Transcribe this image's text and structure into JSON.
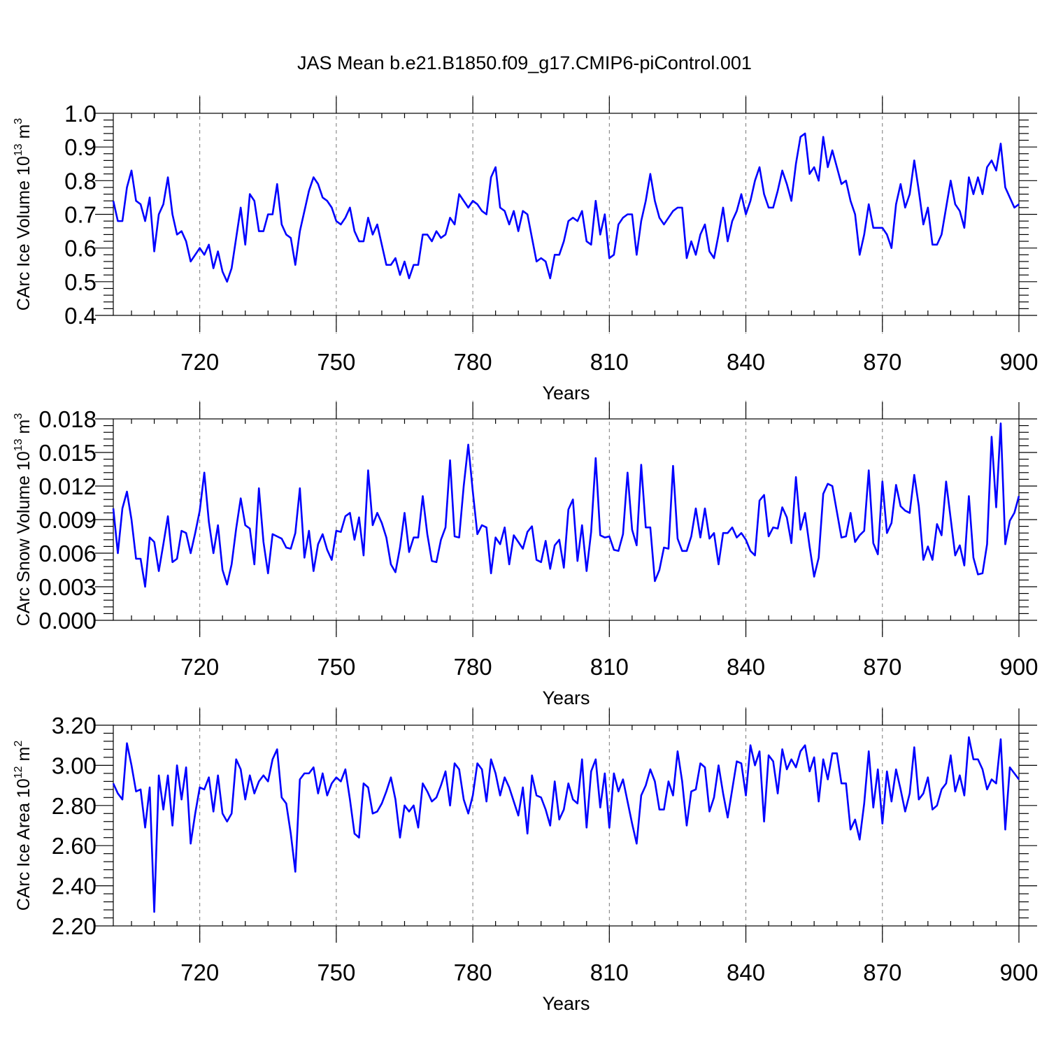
{
  "chart_data": {
    "type": "line",
    "title": "JAS Mean b.e21.B1850.f09_g17.CMIP6-piControl.001",
    "x_start": 701,
    "x_step": 1,
    "xlim": [
      701,
      900
    ],
    "xticks": [
      720,
      750,
      780,
      810,
      840,
      870,
      900
    ],
    "panels": [
      {
        "name": "ice-volume",
        "ylabel": "CArc Ice Volume 10",
        "ylabel_sup": "13",
        "ylabel_unit": " m",
        "ylabel_unit_sup": "3",
        "xlabel": "Years",
        "ylim": [
          0.4,
          1.0
        ],
        "yticks": [
          0.4,
          0.5,
          0.6,
          0.7,
          0.8,
          0.9,
          1.0
        ],
        "ytick_labels": [
          "0.4",
          "0.5",
          "0.6",
          "0.7",
          "0.8",
          "0.9",
          "1.0"
        ],
        "series": [
          {
            "name": "CArc Ice Volume",
            "color": "#0000ff",
            "values": [
              0.74,
              0.68,
              0.68,
              0.78,
              0.83,
              0.74,
              0.73,
              0.68,
              0.75,
              0.59,
              0.7,
              0.73,
              0.81,
              0.7,
              0.64,
              0.65,
              0.62,
              0.56,
              0.58,
              0.6,
              0.58,
              0.61,
              0.54,
              0.59,
              0.53,
              0.5,
              0.54,
              0.63,
              0.72,
              0.61,
              0.76,
              0.74,
              0.65,
              0.65,
              0.7,
              0.7,
              0.79,
              0.67,
              0.64,
              0.63,
              0.55,
              0.65,
              0.71,
              0.77,
              0.81,
              0.79,
              0.75,
              0.74,
              0.72,
              0.68,
              0.67,
              0.69,
              0.72,
              0.65,
              0.62,
              0.62,
              0.69,
              0.64,
              0.67,
              0.61,
              0.55,
              0.55,
              0.57,
              0.52,
              0.56,
              0.51,
              0.55,
              0.55,
              0.64,
              0.64,
              0.62,
              0.65,
              0.63,
              0.64,
              0.69,
              0.67,
              0.76,
              0.74,
              0.72,
              0.74,
              0.73,
              0.71,
              0.7,
              0.81,
              0.84,
              0.72,
              0.71,
              0.67,
              0.71,
              0.65,
              0.71,
              0.7,
              0.63,
              0.56,
              0.57,
              0.56,
              0.51,
              0.58,
              0.58,
              0.62,
              0.68,
              0.69,
              0.68,
              0.71,
              0.62,
              0.61,
              0.74,
              0.64,
              0.7,
              0.57,
              0.58,
              0.67,
              0.69,
              0.7,
              0.7,
              0.58,
              0.68,
              0.74,
              0.82,
              0.74,
              0.69,
              0.67,
              0.69,
              0.71,
              0.72,
              0.72,
              0.57,
              0.62,
              0.58,
              0.64,
              0.67,
              0.59,
              0.57,
              0.64,
              0.72,
              0.62,
              0.68,
              0.71,
              0.76,
              0.7,
              0.74,
              0.8,
              0.84,
              0.76,
              0.72,
              0.72,
              0.77,
              0.83,
              0.79,
              0.74,
              0.85,
              0.93,
              0.94,
              0.82,
              0.84,
              0.8,
              0.93,
              0.84,
              0.89,
              0.84,
              0.79,
              0.8,
              0.74,
              0.7,
              0.58,
              0.64,
              0.73,
              0.66,
              0.66,
              0.66,
              0.64,
              0.6,
              0.73,
              0.79,
              0.72,
              0.76,
              0.86,
              0.77,
              0.67,
              0.72,
              0.61,
              0.61,
              0.64,
              0.72,
              0.8,
              0.73,
              0.71,
              0.66,
              0.81,
              0.76,
              0.81,
              0.76,
              0.84,
              0.86,
              0.83,
              0.91,
              0.78,
              0.75,
              0.72,
              0.73
            ]
          }
        ]
      },
      {
        "name": "snow-volume",
        "ylabel": "CArc Snow Volume 10",
        "ylabel_sup": "13",
        "ylabel_unit": " m",
        "ylabel_unit_sup": "3",
        "xlabel": "Years",
        "ylim": [
          0.0,
          0.018
        ],
        "yticks": [
          0.0,
          0.003,
          0.006,
          0.009,
          0.012,
          0.015,
          0.018
        ],
        "ytick_labels": [
          "0.000",
          "0.003",
          "0.006",
          "0.009",
          "0.012",
          "0.015",
          "0.018"
        ],
        "series": [
          {
            "name": "CArc Snow Volume",
            "color": "#0000ff",
            "values": [
              0.01,
              0.006,
              0.01,
              0.0115,
              0.009,
              0.0055,
              0.0055,
              0.003,
              0.0074,
              0.007,
              0.0044,
              0.0068,
              0.0093,
              0.0052,
              0.0055,
              0.008,
              0.0078,
              0.006,
              0.0078,
              0.0098,
              0.0132,
              0.0088,
              0.006,
              0.0085,
              0.0045,
              0.0032,
              0.005,
              0.0082,
              0.0109,
              0.0085,
              0.0082,
              0.005,
              0.0118,
              0.007,
              0.0042,
              0.0077,
              0.0075,
              0.0073,
              0.0065,
              0.0064,
              0.0078,
              0.0118,
              0.0056,
              0.008,
              0.0044,
              0.0068,
              0.0077,
              0.0063,
              0.0054,
              0.008,
              0.0079,
              0.0093,
              0.0096,
              0.0072,
              0.0092,
              0.0058,
              0.0134,
              0.0085,
              0.0096,
              0.0087,
              0.0074,
              0.005,
              0.0043,
              0.0065,
              0.0096,
              0.0061,
              0.0074,
              0.0074,
              0.0111,
              0.0077,
              0.0053,
              0.0052,
              0.0072,
              0.0083,
              0.0143,
              0.0075,
              0.0074,
              0.012,
              0.0157,
              0.0115,
              0.0077,
              0.0085,
              0.0083,
              0.0042,
              0.0074,
              0.0068,
              0.0083,
              0.005,
              0.0076,
              0.007,
              0.0064,
              0.0079,
              0.0084,
              0.0054,
              0.0052,
              0.0071,
              0.0046,
              0.0067,
              0.0072,
              0.0047,
              0.0099,
              0.0108,
              0.0053,
              0.0085,
              0.0044,
              0.0079,
              0.0145,
              0.0076,
              0.0074,
              0.0075,
              0.0063,
              0.0062,
              0.0077,
              0.0132,
              0.0081,
              0.0067,
              0.0139,
              0.0083,
              0.0083,
              0.0035,
              0.0045,
              0.0065,
              0.0064,
              0.0138,
              0.0073,
              0.0062,
              0.0062,
              0.0075,
              0.01,
              0.0074,
              0.01,
              0.0073,
              0.0078,
              0.005,
              0.0078,
              0.0078,
              0.0083,
              0.0074,
              0.0078,
              0.0072,
              0.0062,
              0.0058,
              0.0107,
              0.0112,
              0.0075,
              0.0083,
              0.0082,
              0.0101,
              0.0092,
              0.0069,
              0.0128,
              0.0081,
              0.0096,
              0.0066,
              0.0039,
              0.0056,
              0.0113,
              0.0122,
              0.012,
              0.0097,
              0.0074,
              0.0075,
              0.0096,
              0.007,
              0.0076,
              0.008,
              0.0134,
              0.0069,
              0.0059,
              0.0124,
              0.0078,
              0.0087,
              0.0121,
              0.0102,
              0.0098,
              0.0096,
              0.013,
              0.0102,
              0.0054,
              0.0066,
              0.0054,
              0.0086,
              0.0076,
              0.0124,
              0.0091,
              0.0058,
              0.0067,
              0.0049,
              0.0111,
              0.0056,
              0.0041,
              0.0042,
              0.0068,
              0.0164,
              0.0101,
              0.0176,
              0.0068,
              0.0089,
              0.0096,
              0.0111
            ]
          }
        ]
      },
      {
        "name": "ice-area",
        "ylabel": "CArc Ice Area 10",
        "ylabel_sup": "12",
        "ylabel_unit": " m",
        "ylabel_unit_sup": "2",
        "xlabel": "Years",
        "ylim": [
          2.2,
          3.2
        ],
        "yticks": [
          2.2,
          2.4,
          2.6,
          2.8,
          3.0,
          3.2
        ],
        "ytick_labels": [
          "2.20",
          "2.40",
          "2.60",
          "2.80",
          "3.00",
          "3.20"
        ],
        "series": [
          {
            "name": "CArc Ice Area",
            "color": "#0000ff",
            "values": [
              2.91,
              2.86,
              2.83,
              3.11,
              3.0,
              2.87,
              2.88,
              2.69,
              2.89,
              2.27,
              2.95,
              2.78,
              2.95,
              2.7,
              3.0,
              2.83,
              2.99,
              2.61,
              2.76,
              2.89,
              2.88,
              2.94,
              2.77,
              2.95,
              2.76,
              2.72,
              2.76,
              3.03,
              2.98,
              2.83,
              2.95,
              2.86,
              2.92,
              2.95,
              2.92,
              3.03,
              3.08,
              2.84,
              2.81,
              2.66,
              2.47,
              2.93,
              2.96,
              2.96,
              2.99,
              2.86,
              2.96,
              2.85,
              2.91,
              2.94,
              2.92,
              2.98,
              2.83,
              2.66,
              2.64,
              2.91,
              2.89,
              2.76,
              2.77,
              2.81,
              2.87,
              2.94,
              2.83,
              2.64,
              2.8,
              2.77,
              2.8,
              2.69,
              2.91,
              2.87,
              2.82,
              2.84,
              2.9,
              2.97,
              2.8,
              3.01,
              2.98,
              2.83,
              2.76,
              2.85,
              3.01,
              2.98,
              2.82,
              3.03,
              2.96,
              2.85,
              2.94,
              2.89,
              2.82,
              2.75,
              2.89,
              2.66,
              2.95,
              2.85,
              2.84,
              2.78,
              2.7,
              2.92,
              2.73,
              2.78,
              2.91,
              2.83,
              2.81,
              3.03,
              2.69,
              2.97,
              3.03,
              2.79,
              2.96,
              2.69,
              2.96,
              2.87,
              2.93,
              2.82,
              2.71,
              2.61,
              2.85,
              2.9,
              2.98,
              2.92,
              2.78,
              2.78,
              2.92,
              2.85,
              3.07,
              2.92,
              2.7,
              2.87,
              2.88,
              3.01,
              2.99,
              2.77,
              2.84,
              3.0,
              2.86,
              2.74,
              2.88,
              3.02,
              3.01,
              2.85,
              3.1,
              3.0,
              3.07,
              2.72,
              3.05,
              3.02,
              2.86,
              3.08,
              2.98,
              3.03,
              2.99,
              3.07,
              3.1,
              2.97,
              3.04,
              2.82,
              3.03,
              2.93,
              3.06,
              3.06,
              2.91,
              2.91,
              2.68,
              2.73,
              2.63,
              2.81,
              3.07,
              2.79,
              2.98,
              2.71,
              2.97,
              2.82,
              2.98,
              2.88,
              2.77,
              2.86,
              3.09,
              2.83,
              2.86,
              2.94,
              2.78,
              2.8,
              2.88,
              2.91,
              3.05,
              2.87,
              2.95,
              2.85,
              3.14,
              3.03,
              3.03,
              2.98,
              2.88,
              2.93,
              2.91,
              3.13,
              2.68,
              2.99,
              2.96,
              2.93
            ]
          }
        ]
      }
    ]
  }
}
